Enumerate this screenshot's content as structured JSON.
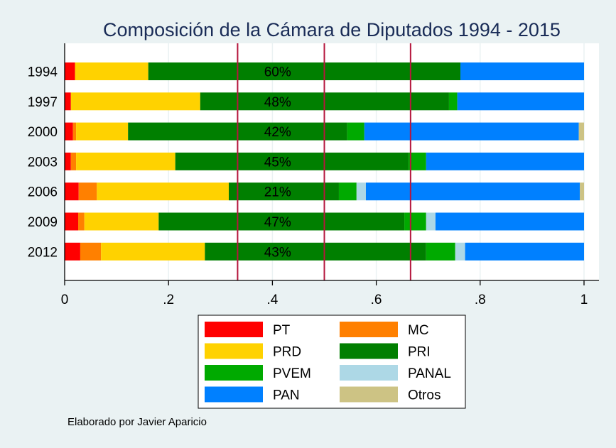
{
  "chart_data": {
    "type": "bar",
    "orientation": "horizontal",
    "stacked": true,
    "title": "Composición de la Cámara de Diputados 1994 - 2015",
    "xlabel": "",
    "ylabel": "",
    "xlim": [
      0,
      1
    ],
    "x_ticks": [
      {
        "value": 0,
        "label": "0"
      },
      {
        "value": 0.2,
        "label": ".2"
      },
      {
        "value": 0.4,
        "label": ".4"
      },
      {
        "value": 0.6,
        "label": ".6"
      },
      {
        "value": 0.8,
        "label": ".8"
      },
      {
        "value": 1,
        "label": "1"
      }
    ],
    "grid": true,
    "reference_lines": [
      0.333,
      0.5,
      0.666
    ],
    "reference_line_color": "#b5163d",
    "categories": [
      "1994",
      "1997",
      "2000",
      "2003",
      "2006",
      "2009",
      "2012"
    ],
    "series": [
      {
        "name": "PT",
        "color": "#ff0000",
        "values": [
          0.02,
          0.012,
          0.016,
          0.012,
          0.027,
          0.026,
          0.03
        ]
      },
      {
        "name": "MC",
        "color": "#ff8000",
        "values": [
          0.0,
          0.0,
          0.006,
          0.01,
          0.035,
          0.012,
          0.04
        ]
      },
      {
        "name": "PRD",
        "color": "#ffd200",
        "values": [
          0.141,
          0.249,
          0.1,
          0.191,
          0.254,
          0.143,
          0.2
        ]
      },
      {
        "name": "PRI",
        "color": "#007f00",
        "values": [
          0.601,
          0.479,
          0.422,
          0.449,
          0.212,
          0.473,
          0.426
        ]
      },
      {
        "name": "PVEM",
        "color": "#00aa00",
        "values": [
          0.0,
          0.016,
          0.033,
          0.034,
          0.034,
          0.042,
          0.056
        ]
      },
      {
        "name": "PANAL",
        "color": "#add8e6",
        "values": [
          0.0,
          0.0,
          0.0,
          0.0,
          0.018,
          0.018,
          0.019
        ]
      },
      {
        "name": "PAN",
        "color": "#0080ff",
        "values": [
          0.238,
          0.244,
          0.413,
          0.304,
          0.412,
          0.286,
          0.229
        ]
      },
      {
        "name": "Otros",
        "color": "#cdc384",
        "values": [
          0.0,
          0.0,
          0.01,
          0.0,
          0.008,
          0.0,
          0.0
        ]
      }
    ],
    "annotations": [
      "60%",
      "48%",
      "42%",
      "45%",
      "21%",
      "47%",
      "43%"
    ],
    "legend": {
      "position": "bottom",
      "columns": 2,
      "order": [
        "PT",
        "MC",
        "PRD",
        "PRI",
        "PVEM",
        "PANAL",
        "PAN",
        "Otros"
      ]
    },
    "note": "Elaborado por Javier Aparicio"
  },
  "colors": {
    "background": "#eaf2f3",
    "plot_background": "#ffffff",
    "title": "#1a2c57",
    "grid": "#eaf2f3"
  }
}
